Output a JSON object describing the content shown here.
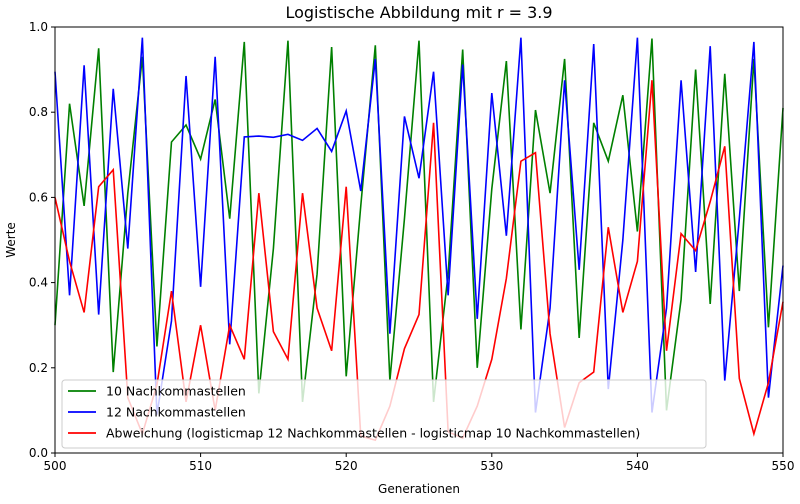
{
  "chart_data": {
    "type": "line",
    "title": "Logistische Abbildung mit r = 3.9",
    "xlabel": "Generationen",
    "ylabel": "Werte",
    "xlim": [
      500,
      550
    ],
    "ylim": [
      0.0,
      1.0
    ],
    "xticks": [
      500,
      510,
      520,
      530,
      540,
      550
    ],
    "yticks": [
      0.0,
      0.2,
      0.4,
      0.6,
      0.8,
      1.0
    ],
    "xtick_labels": [
      "500",
      "510",
      "520",
      "530",
      "540",
      "550"
    ],
    "ytick_labels": [
      "0.0",
      "0.2",
      "0.4",
      "0.6",
      "0.8",
      "1.0"
    ],
    "grid": false,
    "legend_position": "lower-left",
    "x": [
      500,
      501,
      502,
      503,
      504,
      505,
      506,
      507,
      508,
      509,
      510,
      511,
      512,
      513,
      514,
      515,
      516,
      517,
      518,
      519,
      520,
      521,
      522,
      523,
      524,
      525,
      526,
      527,
      528,
      529,
      530,
      531,
      532,
      533,
      534,
      535,
      536,
      537,
      538,
      539,
      540,
      541,
      542,
      543,
      544,
      545,
      546,
      547,
      548,
      549,
      550
    ],
    "series": [
      {
        "name": "10 Nachkommastellen",
        "color": "#008000",
        "values": [
          0.3,
          0.82,
          0.58,
          0.95,
          0.19,
          0.61,
          0.93,
          0.25,
          0.73,
          0.77,
          0.69,
          0.83,
          0.55,
          0.965,
          0.14,
          0.48,
          0.968,
          0.12,
          0.42,
          0.953,
          0.18,
          0.58,
          0.957,
          0.17,
          0.55,
          0.968,
          0.12,
          0.42,
          0.947,
          0.2,
          0.62,
          0.92,
          0.29,
          0.805,
          0.61,
          0.925,
          0.27,
          0.775,
          0.685,
          0.84,
          0.52,
          0.973,
          0.1,
          0.36,
          0.9,
          0.35,
          0.89,
          0.38,
          0.925,
          0.295,
          0.81
        ]
      },
      {
        "name": "12 Nachkommastellen",
        "color": "#0000ff",
        "values": [
          0.895,
          0.37,
          0.91,
          0.325,
          0.855,
          0.48,
          0.975,
          0.09,
          0.31,
          0.885,
          0.39,
          0.93,
          0.255,
          0.742,
          0.744,
          0.741,
          0.748,
          0.734,
          0.762,
          0.708,
          0.803,
          0.615,
          0.925,
          0.28,
          0.79,
          0.645,
          0.895,
          0.37,
          0.912,
          0.315,
          0.845,
          0.51,
          0.975,
          0.095,
          0.34,
          0.875,
          0.43,
          0.96,
          0.15,
          0.5,
          0.975,
          0.095,
          0.34,
          0.875,
          0.425,
          0.955,
          0.17,
          0.55,
          0.965,
          0.13,
          0.44
        ]
      },
      {
        "name": "Abweichung (logisticmap 12 Nachkommastellen - logisticmap 10 Nachkommastellen)",
        "color": "#ff0000",
        "values": [
          0.6,
          0.45,
          0.33,
          0.625,
          0.665,
          0.13,
          0.045,
          0.16,
          0.38,
          0.12,
          0.3,
          0.1,
          0.3,
          0.22,
          0.61,
          0.285,
          0.22,
          0.61,
          0.34,
          0.24,
          0.625,
          0.04,
          0.03,
          0.11,
          0.245,
          0.325,
          0.775,
          0.05,
          0.035,
          0.11,
          0.22,
          0.41,
          0.685,
          0.705,
          0.28,
          0.06,
          0.165,
          0.19,
          0.53,
          0.33,
          0.45,
          0.875,
          0.24,
          0.515,
          0.475,
          0.59,
          0.72,
          0.175,
          0.045,
          0.165,
          0.355
        ]
      }
    ]
  }
}
